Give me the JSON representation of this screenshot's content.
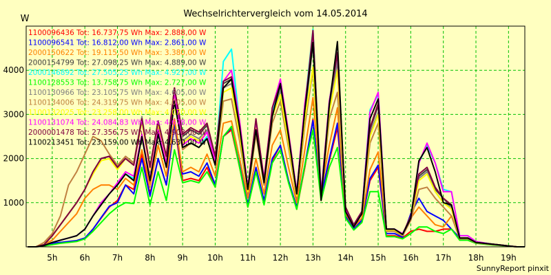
{
  "chart_data": {
    "type": "line",
    "title": "Wechselrichtervergleich vom 14.05.2014",
    "ylabel": "W",
    "xlabel": "",
    "footer": "SunnyReport pinxit",
    "x_ticks": [
      "5h",
      "6h",
      "7h",
      "8h",
      "9h",
      "10h",
      "11h",
      "12h",
      "13h",
      "14h",
      "15h",
      "16h",
      "17h",
      "18h",
      "19h"
    ],
    "y_ticks": [
      1000,
      2000,
      3000,
      4000
    ],
    "xlim": [
      4.2,
      19.5
    ],
    "ylim": [
      0,
      5000
    ],
    "grid": true,
    "legend_position": "top-left",
    "x": [
      4.25,
      4.5,
      4.75,
      5.0,
      5.25,
      5.5,
      5.75,
      6.0,
      6.25,
      6.5,
      6.75,
      7.0,
      7.25,
      7.5,
      7.75,
      8.0,
      8.25,
      8.5,
      8.75,
      9.0,
      9.25,
      9.5,
      9.75,
      10.0,
      10.25,
      10.5,
      10.75,
      11.0,
      11.25,
      11.5,
      11.75,
      12.0,
      12.25,
      12.5,
      12.75,
      13.0,
      13.25,
      13.5,
      13.75,
      14.0,
      14.25,
      14.5,
      14.75,
      15.0,
      15.25,
      15.5,
      15.75,
      16.0,
      16.25,
      16.5,
      16.75,
      17.0,
      17.25,
      17.5,
      17.75,
      18.0,
      18.25,
      18.5,
      18.75,
      19.0,
      19.25,
      19.5
    ],
    "series": [
      {
        "name": "1100096436 Tot: 16.737,75 Wh Max: 2.888,00 W",
        "color": "#ff0000",
        "values": [
          0,
          0,
          20,
          60,
          90,
          110,
          130,
          190,
          400,
          650,
          900,
          1050,
          1400,
          1300,
          2100,
          1200,
          2000,
          1400,
          2800,
          1500,
          1550,
          1500,
          1800,
          1350,
          2500,
          2650,
          1800,
          900,
          1750,
          1000,
          1950,
          2300,
          1500,
          850,
          1800,
          2888,
          1100,
          1950,
          2700,
          700,
          400,
          600,
          1500,
          1800,
          250,
          250,
          200,
          350,
          400,
          350,
          350,
          400,
          400,
          200,
          200,
          100,
          80,
          60,
          40,
          20,
          0,
          0
        ]
      },
      {
        "name": "1100096541 Tot: 16.812,00 Wh Max: 2.861,00 W",
        "color": "#0000ff",
        "values": [
          0,
          0,
          20,
          80,
          100,
          120,
          140,
          200,
          400,
          660,
          920,
          1000,
          1400,
          1200,
          2000,
          1150,
          2000,
          1400,
          2800,
          1650,
          1700,
          1600,
          1900,
          1400,
          2500,
          2700,
          1850,
          950,
          1800,
          1050,
          2000,
          2300,
          1500,
          900,
          1850,
          2861,
          1150,
          2000,
          2800,
          700,
          400,
          600,
          1550,
          1850,
          300,
          300,
          220,
          750,
          1100,
          800,
          700,
          600,
          400,
          200,
          200,
          100,
          80,
          60,
          40,
          20,
          0,
          0
        ]
      },
      {
        "name": "2000150622 Tot: 19.115,50 Wh Max: 3.380,00 W",
        "color": "#ff8000",
        "values": [
          0,
          0,
          50,
          150,
          350,
          550,
          750,
          1100,
          1300,
          1400,
          1400,
          1300,
          1550,
          1400,
          2200,
          1400,
          2300,
          1600,
          2900,
          1700,
          1800,
          1700,
          2100,
          1600,
          2800,
          2850,
          2000,
          1100,
          2000,
          1200,
          2300,
          2650,
          1800,
          1000,
          2200,
          3380,
          1250,
          2300,
          3150,
          750,
          450,
          650,
          1750,
          2150,
          350,
          350,
          250,
          650,
          900,
          700,
          500,
          450,
          700,
          200,
          200,
          100,
          80,
          60,
          40,
          20,
          0,
          0
        ]
      },
      {
        "name": "2000154799 Tot: 27.098,25 Wh Max: 4.889,00 W",
        "color": "#404040",
        "values": [
          0,
          0,
          50,
          250,
          500,
          750,
          1000,
          1300,
          1700,
          2000,
          2050,
          1800,
          2000,
          1850,
          2900,
          1800,
          2850,
          2050,
          3600,
          2500,
          2650,
          2550,
          2750,
          2000,
          3700,
          3800,
          2700,
          1300,
          2850,
          1500,
          3100,
          3650,
          2500,
          1200,
          3050,
          4889,
          1150,
          3200,
          4300,
          900,
          500,
          800,
          2650,
          3200,
          400,
          400,
          280,
          700,
          1600,
          1750,
          1300,
          1100,
          900,
          200,
          200,
          100,
          80,
          60,
          40,
          20,
          0,
          0
        ]
      },
      {
        "name": "2000146892 Tot: 27.505,25 Wh Max: 4.927,00 W",
        "color": "#00ffff",
        "values": [
          0,
          0,
          30,
          100,
          150,
          200,
          250,
          400,
          700,
          1000,
          1200,
          1400,
          1650,
          1550,
          2500,
          1500,
          2600,
          1850,
          3400,
          2250,
          2350,
          2250,
          2500,
          1900,
          4200,
          4480,
          2800,
          1300,
          2800,
          1500,
          3100,
          3750,
          2550,
          1250,
          3200,
          4927,
          1200,
          3300,
          4400,
          850,
          500,
          800,
          3100,
          3450,
          400,
          400,
          300,
          650,
          1900,
          2300,
          1900,
          1300,
          1250,
          250,
          250,
          120,
          90,
          60,
          40,
          20,
          0,
          0
        ]
      },
      {
        "name": "1100128553 Tot: 13.758,75 Wh Max: 2.727,00 W",
        "color": "#00ff00",
        "values": [
          0,
          0,
          20,
          50,
          80,
          100,
          120,
          180,
          350,
          550,
          750,
          900,
          1000,
          980,
          1800,
          950,
          1700,
          1050,
          2200,
          1450,
          1500,
          1450,
          1700,
          1350,
          2500,
          2727,
          1800,
          900,
          1700,
          950,
          1900,
          2200,
          1450,
          850,
          1850,
          2650,
          1050,
          1800,
          2250,
          650,
          380,
          550,
          1250,
          1250,
          230,
          230,
          180,
          300,
          450,
          450,
          350,
          300,
          400,
          150,
          150,
          80,
          60,
          40,
          30,
          15,
          0,
          0
        ]
      },
      {
        "name": "1100130966 Tot: 23.105,75 Wh Max: 4.605,00 W",
        "color": "#808080",
        "values": [
          0,
          0,
          50,
          250,
          500,
          750,
          1000,
          1300,
          1700,
          2000,
          2050,
          1800,
          2050,
          1900,
          2950,
          1800,
          2850,
          2050,
          3500,
          2400,
          2550,
          2450,
          2650,
          1950,
          3600,
          3700,
          2600,
          1250,
          2750,
          1450,
          3000,
          3550,
          2400,
          1150,
          2950,
          4605,
          1150,
          3100,
          4200,
          850,
          480,
          780,
          2550,
          3050,
          380,
          380,
          270,
          680,
          1550,
          1700,
          1250,
          1000,
          900,
          200,
          200,
          100,
          80,
          60,
          40,
          20,
          0,
          0
        ]
      },
      {
        "name": "1100134006 Tot: 24.319,75 Wh Max: 4.005,00 W",
        "color": "#c08040",
        "values": [
          0,
          0,
          100,
          300,
          700,
          1400,
          1700,
          2100,
          2500,
          2400,
          2100,
          1850,
          2050,
          1900,
          2900,
          1800,
          2700,
          2000,
          3300,
          2200,
          2350,
          2250,
          2450,
          1850,
          3300,
          3350,
          2400,
          1200,
          2550,
          1400,
          2800,
          3300,
          2250,
          1100,
          2750,
          4005,
          1100,
          2900,
          3500,
          800,
          450,
          750,
          2350,
          2800,
          350,
          350,
          250,
          600,
          1300,
          1350,
          1100,
          900,
          700,
          180,
          180,
          90,
          70,
          50,
          35,
          18,
          0,
          0
        ]
      },
      {
        "name": "1100132025 Tot: 23.258,00 Wh Max: 4.070,00 W",
        "color": "#ffff00",
        "values": [
          0,
          0,
          50,
          250,
          500,
          750,
          1000,
          1300,
          1650,
          1950,
          2000,
          1750,
          2000,
          1850,
          2850,
          1750,
          2800,
          2000,
          3450,
          2350,
          2500,
          2400,
          2600,
          1900,
          3500,
          3600,
          2550,
          1250,
          2700,
          1450,
          2950,
          3450,
          2350,
          1150,
          2900,
          4070,
          1150,
          3050,
          4000,
          850,
          480,
          780,
          2500,
          3000,
          380,
          380,
          270,
          670,
          1500,
          1650,
          1250,
          1000,
          850,
          200,
          200,
          100,
          80,
          60,
          40,
          20,
          0,
          0
        ]
      },
      {
        "name": "1100131074 Tot: 24.084,83 Wh Max: 4.678,00 W",
        "color": "#ff00ff",
        "values": [
          0,
          0,
          30,
          100,
          150,
          200,
          250,
          400,
          700,
          1000,
          1200,
          1450,
          1700,
          1600,
          2550,
          1550,
          2650,
          1900,
          3500,
          2300,
          2450,
          2350,
          2600,
          1950,
          3750,
          4000,
          2850,
          1350,
          2850,
          1550,
          3150,
          3800,
          2600,
          1250,
          3250,
          4678,
          1200,
          3300,
          4400,
          850,
          500,
          800,
          3050,
          3500,
          400,
          400,
          300,
          650,
          1900,
          2350,
          1900,
          1250,
          1250,
          250,
          250,
          120,
          90,
          60,
          40,
          20,
          0,
          0
        ]
      },
      {
        "name": "2000001478 Tot: 27.356,75 Wh Max: 4.903,00 W",
        "color": "#800040",
        "values": [
          0,
          0,
          50,
          250,
          500,
          750,
          1000,
          1300,
          1700,
          2000,
          2050,
          1800,
          2000,
          1850,
          2900,
          1800,
          2850,
          2050,
          3600,
          2550,
          2700,
          2600,
          2800,
          2050,
          3750,
          3850,
          2750,
          1300,
          2900,
          1500,
          3150,
          3700,
          2550,
          1200,
          3100,
          4903,
          1150,
          3250,
          4400,
          900,
          500,
          800,
          2700,
          3250,
          400,
          400,
          280,
          700,
          1650,
          1800,
          1350,
          1100,
          950,
          200,
          200,
          100,
          80,
          60,
          40,
          20,
          0,
          0
        ]
      },
      {
        "name": "1100213451 Tot: 23.159,00 Wh Max: 4.630,00 W",
        "color": "#000000",
        "values": [
          0,
          0,
          30,
          100,
          150,
          200,
          250,
          400,
          700,
          950,
          1200,
          1400,
          1650,
          1500,
          2500,
          1500,
          2550,
          1800,
          3300,
          2250,
          2350,
          2250,
          2450,
          1850,
          3600,
          3800,
          2700,
          1300,
          2650,
          1450,
          2950,
          3700,
          2500,
          1200,
          3100,
          4630,
          1050,
          3200,
          4650,
          800,
          450,
          750,
          2900,
          3350,
          400,
          400,
          280,
          650,
          1950,
          2250,
          1700,
          1000,
          950,
          200,
          200,
          100,
          80,
          60,
          40,
          20,
          0,
          0
        ]
      }
    ]
  }
}
